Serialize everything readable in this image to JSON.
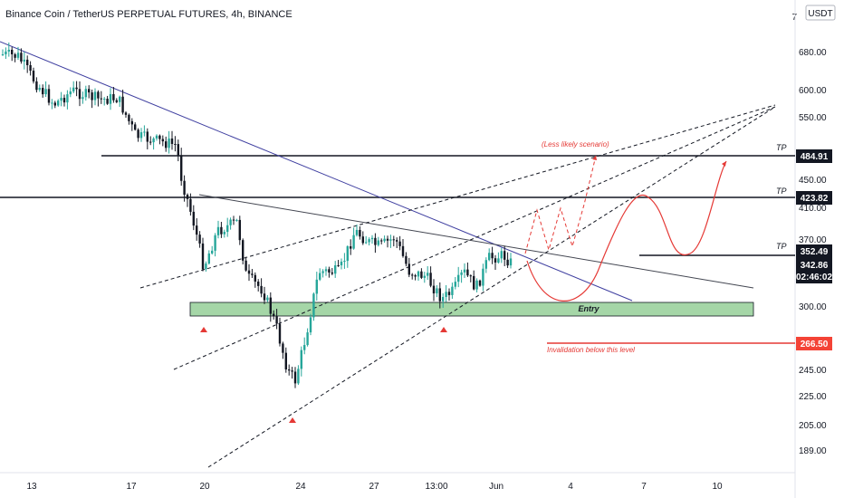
{
  "header": {
    "title": "Binance Coin / TetherUS PERPETUAL FUTURES, 4h, BINANCE"
  },
  "price_axis": {
    "currency": "USDT",
    "ticks": [
      "680.00",
      "600.00",
      "550.00",
      "450.00",
      "410.00",
      "370.00",
      "300.00",
      "245.00",
      "225.00",
      "205.00",
      "189.00"
    ]
  },
  "time_axis": {
    "ticks": [
      "13",
      "17",
      "20",
      "24",
      "27",
      "13:00",
      "Jun",
      "4",
      "7",
      "10"
    ]
  },
  "levels": [
    {
      "label": "484.91",
      "tp": "TP",
      "color": "#131722"
    },
    {
      "label": "423.82",
      "tp": "TP",
      "color": "#131722"
    },
    {
      "label": "352.49",
      "tp": "TP",
      "color": "#131722"
    }
  ],
  "current_price": {
    "price": "342.86",
    "countdown": "02:46:02",
    "color": "#131722"
  },
  "invalidation": {
    "label": "266.50",
    "text": "Invalidation below this level",
    "color": "#f44336"
  },
  "entry_zone": {
    "text": "Entry",
    "color": "#a5d6a7"
  },
  "scenario_note": "(Less likely scenario)",
  "colors": {
    "up": "#26a69a",
    "down": "#131722",
    "trend": "#3f3fa0",
    "projection": "#e53935"
  },
  "chart_data": {
    "type": "candlestick",
    "symbol": "Binance Coin / TetherUS PERPETUAL FUTURES",
    "interval": "4h",
    "exchange": "BINANCE",
    "unit": "USDT",
    "horizontal_levels": [
      484.91,
      423.82,
      352.49,
      342.86,
      266.5
    ],
    "x_ticks": [
      "13",
      "17",
      "20",
      "24",
      "27",
      "13:00",
      "Jun",
      "4",
      "7",
      "10"
    ]
  }
}
